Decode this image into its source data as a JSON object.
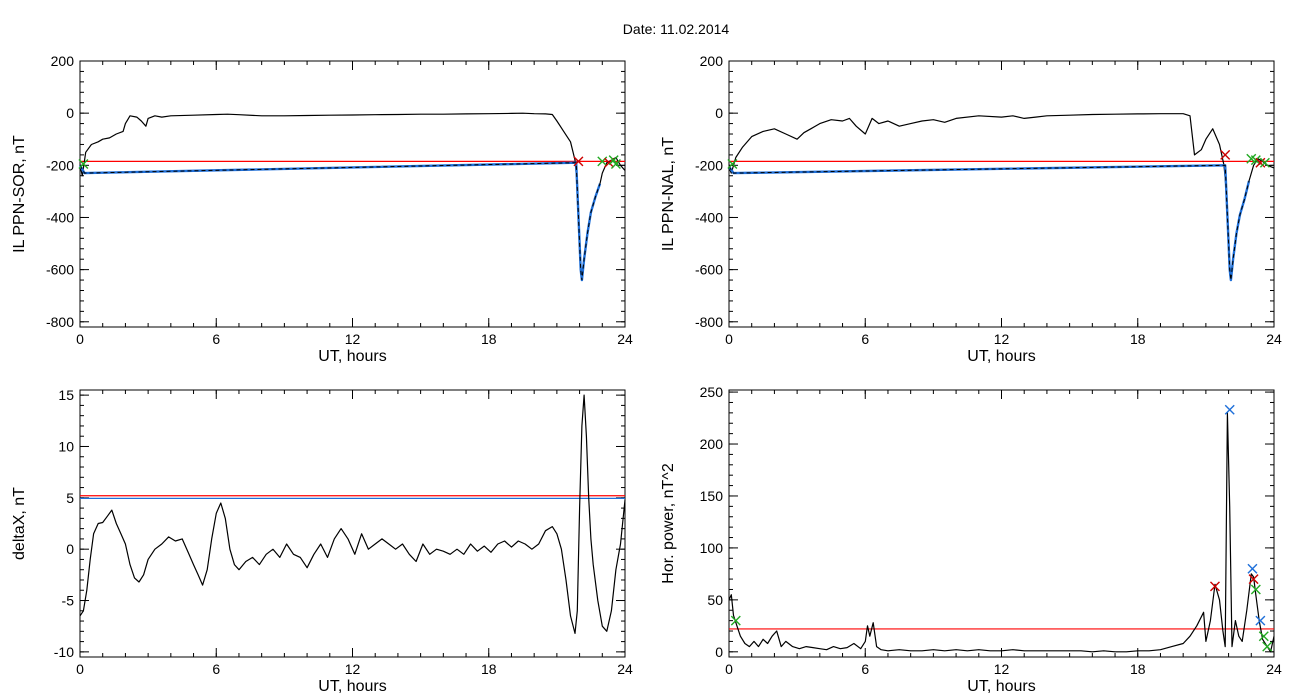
{
  "figure": {
    "title": "Date:  11.02.2014"
  },
  "colors": {
    "curve": "#000000",
    "threshold": "#ff0000",
    "threshold_alt": "#1e6fd9",
    "highlight": "#1e6fd9",
    "marker_red": "#cc0000",
    "marker_green": "#22aa22",
    "marker_blue": "#1e6fd9"
  },
  "chart_data": [
    {
      "type": "line",
      "title": "",
      "xlabel": "UT, hours",
      "ylabel": "IL PPN-SOR, nT",
      "xlim": [
        0,
        24
      ],
      "ylim": [
        -820,
        200
      ],
      "xticks": [
        0,
        6,
        12,
        18,
        24
      ],
      "yticks": [
        -800,
        -600,
        -400,
        -200,
        0,
        200
      ],
      "grid": false,
      "series": [
        {
          "x": [
            0,
            0.1,
            0.25,
            0.5,
            0.8,
            1.0,
            1.3,
            1.6,
            1.9,
            2.0,
            2.2,
            2.5,
            2.7,
            2.9,
            3.0,
            3.3,
            3.6,
            4.0,
            5.0,
            6.0,
            6.5,
            7.0,
            8.0,
            9.0,
            10.0,
            11.0,
            12.0,
            13.0,
            14.0,
            15.0,
            16.0,
            17.0,
            18.0,
            19.0,
            19.5,
            20.0,
            20.5,
            20.8,
            21.0,
            21.3,
            21.6,
            21.8,
            21.9,
            22.0,
            22.05,
            22.1,
            22.2,
            22.35,
            22.5,
            22.7,
            22.9,
            23.0,
            23.2,
            23.4,
            23.6,
            23.8,
            24.0
          ],
          "y": [
            -200,
            -240,
            -150,
            -120,
            -110,
            -100,
            -95,
            -80,
            -70,
            -40,
            -10,
            -15,
            -30,
            -50,
            -20,
            -10,
            -15,
            -10,
            -8,
            -5,
            -4,
            -6,
            -10,
            -10,
            -9,
            -8,
            -7,
            -6,
            -5,
            -4,
            -4,
            -3,
            -2,
            -1,
            0,
            -2,
            -3,
            -5,
            -30,
            -70,
            -110,
            -180,
            -280,
            -500,
            -600,
            -640,
            -560,
            -460,
            -380,
            -320,
            -270,
            -230,
            -190,
            -180,
            -170,
            -200,
            -220
          ]
        },
        {
          "name": "",
          "x": [
            0,
            0.2,
            21.85,
            22.0,
            22.05,
            22.1,
            22.2,
            22.35,
            22.5,
            22.7,
            22.9
          ],
          "y": [
            -200,
            -230,
            -190,
            -500,
            -600,
            -640,
            -560,
            -460,
            -380,
            -320,
            -270
          ]
        }
      ],
      "hlines": [
        -185
      ],
      "markers": [
        {
          "x": 0.15,
          "y": -195,
          "color": "green"
        },
        {
          "x": 21.95,
          "y": -185,
          "color": "red"
        },
        {
          "x": 23.0,
          "y": -185,
          "color": "green"
        },
        {
          "x": 23.3,
          "y": -190,
          "color": "red"
        },
        {
          "x": 23.5,
          "y": -180,
          "color": "green"
        },
        {
          "x": 23.6,
          "y": -195,
          "color": "green"
        }
      ]
    },
    {
      "type": "line",
      "title": "",
      "xlabel": "UT, hours",
      "ylabel": "IL PPN-NAL, nT",
      "xlim": [
        0,
        24
      ],
      "ylim": [
        -820,
        200
      ],
      "xticks": [
        0,
        6,
        12,
        18,
        24
      ],
      "yticks": [
        -800,
        -600,
        -400,
        -200,
        0,
        200
      ],
      "grid": false,
      "series": [
        {
          "x": [
            0,
            0.1,
            0.3,
            0.6,
            1.0,
            1.5,
            2.0,
            2.5,
            3.0,
            3.3,
            3.6,
            4.0,
            4.5,
            5.0,
            5.3,
            5.6,
            6.0,
            6.3,
            6.6,
            7.0,
            7.5,
            8.0,
            8.5,
            9.0,
            9.5,
            10.0,
            11.0,
            12.0,
            12.5,
            13.0,
            13.5,
            14.0,
            15.0,
            16.0,
            17.0,
            18.0,
            19.0,
            20.0,
            20.3,
            20.5,
            20.8,
            21.0,
            21.3,
            21.6,
            21.8,
            21.9,
            22.0,
            22.05,
            22.1,
            22.2,
            22.35,
            22.5,
            22.7,
            22.9,
            23.1,
            23.3,
            23.5,
            23.7,
            24.0
          ],
          "y": [
            -210,
            -230,
            -170,
            -130,
            -90,
            -70,
            -60,
            -80,
            -100,
            -75,
            -60,
            -40,
            -25,
            -30,
            -20,
            -50,
            -80,
            -20,
            -40,
            -30,
            -50,
            -40,
            -30,
            -25,
            -35,
            -20,
            -10,
            -15,
            -10,
            -20,
            -15,
            -10,
            -8,
            -5,
            -4,
            -3,
            -2,
            -2,
            -10,
            -160,
            -140,
            -100,
            -60,
            -120,
            -200,
            -300,
            -500,
            -600,
            -640,
            -560,
            -460,
            -390,
            -330,
            -260,
            -200,
            -175,
            -185,
            -200,
            -210
          ]
        },
        {
          "name": "",
          "x": [
            0,
            0.2,
            21.85,
            22.0,
            22.05,
            22.1,
            22.2,
            22.35,
            22.5,
            22.7,
            22.9
          ],
          "y": [
            -205,
            -230,
            -200,
            -500,
            -600,
            -640,
            -560,
            -460,
            -390,
            -330,
            -260
          ]
        }
      ],
      "hlines": [
        -185
      ],
      "markers": [
        {
          "x": 0.15,
          "y": -195,
          "color": "green"
        },
        {
          "x": 21.85,
          "y": -160,
          "color": "red"
        },
        {
          "x": 23.0,
          "y": -175,
          "color": "green"
        },
        {
          "x": 23.2,
          "y": -180,
          "color": "green"
        },
        {
          "x": 23.4,
          "y": -190,
          "color": "red"
        },
        {
          "x": 23.6,
          "y": -190,
          "color": "green"
        }
      ]
    },
    {
      "type": "line",
      "title": "",
      "xlabel": "UT, hours",
      "ylabel": "deltaX, nT",
      "xlim": [
        0,
        24
      ],
      "ylim": [
        -10.5,
        15.5
      ],
      "xticks": [
        0,
        6,
        12,
        18,
        24
      ],
      "yticks": [
        -10,
        -5,
        0,
        5,
        10,
        15
      ],
      "grid": false,
      "series": [
        {
          "x": [
            0,
            0.15,
            0.3,
            0.45,
            0.6,
            0.8,
            1.0,
            1.2,
            1.4,
            1.6,
            1.8,
            2.0,
            2.2,
            2.4,
            2.6,
            2.8,
            3.0,
            3.3,
            3.6,
            3.9,
            4.2,
            4.5,
            4.8,
            5.0,
            5.2,
            5.4,
            5.6,
            5.8,
            6.0,
            6.2,
            6.4,
            6.6,
            6.8,
            7.0,
            7.3,
            7.6,
            7.9,
            8.2,
            8.5,
            8.8,
            9.1,
            9.4,
            9.7,
            10.0,
            10.3,
            10.6,
            10.9,
            11.2,
            11.5,
            11.8,
            12.1,
            12.4,
            12.7,
            13.0,
            13.3,
            13.6,
            13.9,
            14.2,
            14.5,
            14.8,
            15.1,
            15.4,
            15.7,
            16.0,
            16.3,
            16.6,
            16.9,
            17.2,
            17.5,
            17.8,
            18.1,
            18.4,
            18.7,
            19.0,
            19.3,
            19.6,
            19.9,
            20.2,
            20.5,
            20.8,
            21.0,
            21.2,
            21.4,
            21.6,
            21.8,
            21.9,
            22.0,
            22.1,
            22.2,
            22.3,
            22.4,
            22.5,
            22.6,
            22.8,
            23.0,
            23.2,
            23.4,
            23.6,
            23.8,
            24.0
          ],
          "y": [
            -6.5,
            -6.0,
            -4.0,
            -1.0,
            1.5,
            2.5,
            2.6,
            3.2,
            3.8,
            2.5,
            1.5,
            0.5,
            -1.5,
            -2.8,
            -3.2,
            -2.5,
            -1.0,
            0.0,
            0.5,
            1.2,
            0.8,
            1.0,
            -0.5,
            -1.5,
            -2.5,
            -3.5,
            -2.0,
            1.0,
            3.5,
            4.5,
            3.0,
            0.0,
            -1.5,
            -2.0,
            -1.2,
            -0.8,
            -1.5,
            -0.5,
            0.0,
            -0.8,
            0.5,
            -0.5,
            -0.8,
            -1.8,
            -0.5,
            0.5,
            -0.8,
            1.0,
            2.0,
            1.0,
            -0.5,
            1.5,
            0.0,
            0.5,
            1.0,
            0.5,
            0.0,
            0.5,
            -0.5,
            -1.2,
            0.5,
            -0.5,
            0.0,
            -0.2,
            -0.5,
            0.0,
            -0.5,
            0.5,
            -0.2,
            0.3,
            -0.3,
            0.5,
            0.8,
            0.2,
            0.8,
            0.5,
            0.0,
            0.5,
            1.8,
            2.2,
            1.5,
            0.0,
            -3.0,
            -6.5,
            -8.2,
            -6.0,
            4.0,
            12.0,
            15.0,
            11.0,
            5.0,
            1.0,
            -1.5,
            -5.0,
            -7.5,
            -8.0,
            -6.0,
            -2.0,
            0.5,
            4.8
          ]
        }
      ],
      "hlines": [
        5.2,
        4.95
      ],
      "markers": []
    },
    {
      "type": "line",
      "title": "",
      "xlabel": "UT, hours",
      "ylabel": "Hor. power, nT^2",
      "xlim": [
        0,
        24
      ],
      "ylim": [
        -5,
        252
      ],
      "xticks": [
        0,
        6,
        12,
        18,
        24
      ],
      "yticks": [
        0,
        50,
        100,
        150,
        200,
        250
      ],
      "grid": false,
      "series": [
        {
          "x": [
            0,
            0.1,
            0.2,
            0.35,
            0.5,
            0.7,
            0.9,
            1.1,
            1.3,
            1.5,
            1.7,
            1.9,
            2.1,
            2.3,
            2.5,
            2.8,
            3.1,
            3.4,
            3.7,
            4.0,
            4.3,
            4.6,
            4.9,
            5.2,
            5.5,
            5.8,
            6.0,
            6.1,
            6.2,
            6.35,
            6.5,
            6.7,
            7.0,
            7.5,
            8.0,
            8.5,
            9.0,
            9.5,
            10.0,
            10.5,
            11.0,
            11.5,
            12.0,
            12.5,
            13.0,
            13.5,
            14.0,
            14.5,
            15.0,
            15.5,
            16.0,
            16.5,
            17.0,
            17.5,
            18.0,
            18.5,
            19.0,
            19.5,
            20.0,
            20.3,
            20.6,
            20.9,
            21.0,
            21.2,
            21.4,
            21.6,
            21.75,
            21.85,
            21.95,
            22.05,
            22.15,
            22.3,
            22.45,
            22.6,
            22.8,
            23.0,
            23.1,
            23.2,
            23.35,
            23.5,
            23.7,
            23.85,
            24.0
          ],
          "y": [
            50,
            55,
            35,
            25,
            15,
            8,
            5,
            10,
            5,
            12,
            8,
            15,
            20,
            5,
            10,
            5,
            3,
            5,
            4,
            3,
            2,
            5,
            3,
            4,
            8,
            3,
            10,
            25,
            15,
            28,
            5,
            2,
            1,
            2,
            1,
            1,
            2,
            1,
            2,
            1,
            2,
            1,
            1,
            2,
            1,
            1,
            1,
            1,
            1,
            1,
            0,
            1,
            0,
            0,
            1,
            1,
            2,
            5,
            8,
            15,
            25,
            38,
            10,
            30,
            65,
            50,
            20,
            5,
            230,
            140,
            5,
            30,
            15,
            10,
            40,
            75,
            72,
            55,
            30,
            12,
            5,
            0,
            15
          ]
        }
      ],
      "hlines": [
        22
      ],
      "markers": [
        {
          "x": 0.3,
          "y": 30,
          "color": "green"
        },
        {
          "x": 21.4,
          "y": 63,
          "color": "red"
        },
        {
          "x": 22.05,
          "y": 233,
          "color": "blue"
        },
        {
          "x": 23.05,
          "y": 80,
          "color": "blue"
        },
        {
          "x": 23.1,
          "y": 70,
          "color": "red"
        },
        {
          "x": 23.2,
          "y": 60,
          "color": "green"
        },
        {
          "x": 23.4,
          "y": 30,
          "color": "blue"
        },
        {
          "x": 23.55,
          "y": 15,
          "color": "green"
        },
        {
          "x": 23.7,
          "y": 5,
          "color": "green"
        }
      ]
    }
  ]
}
